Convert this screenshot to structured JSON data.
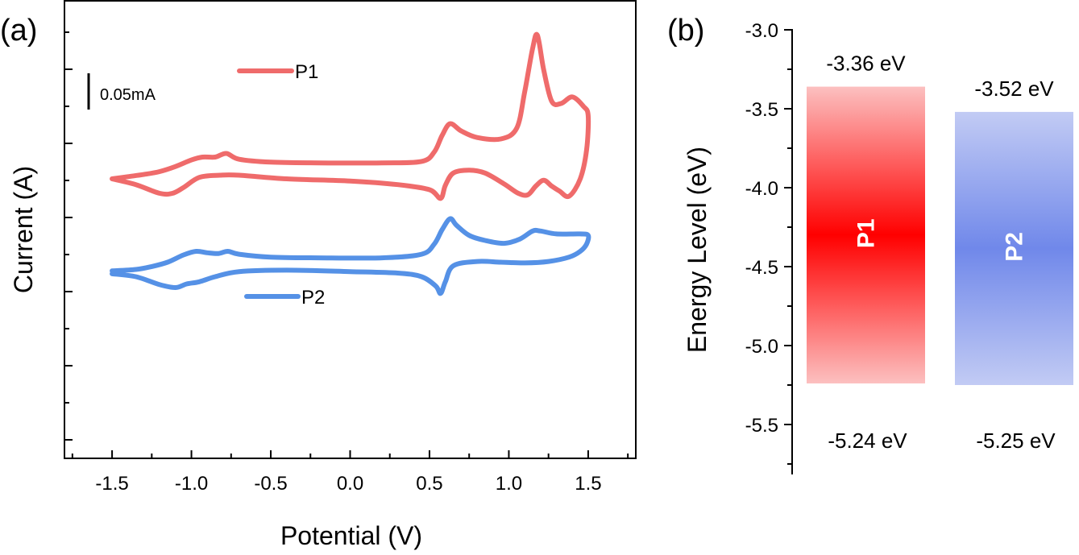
{
  "chart_data": [
    {
      "panel_label": "(a)",
      "type": "line",
      "title": "",
      "xlabel": "Potential (V)",
      "ylabel": "Current (A)",
      "xlim": [
        -1.8,
        1.8
      ],
      "x_ticks": [
        -1.5,
        -1.0,
        -0.5,
        0.0,
        0.5,
        1.0,
        1.5
      ],
      "x_tick_labels": [
        "-1.5",
        "-1.0",
        "-0.5",
        "0.0",
        "0.5",
        "1.0",
        "1.5"
      ],
      "y_tick_labels": [],
      "scale_bar": {
        "label": "0.05mA",
        "value_mA": 0.05
      },
      "legend": [
        "P1",
        "P2"
      ],
      "series": [
        {
          "name": "P1",
          "color": "#ef6b6b",
          "offset_mA": 0.0,
          "x": [
            -1.5,
            -1.4,
            -1.3,
            -1.2,
            -1.1,
            -1.0,
            -0.93,
            -0.85,
            -0.78,
            -0.7,
            -0.5,
            -0.2,
            0.2,
            0.45,
            0.53,
            0.58,
            0.63,
            0.7,
            0.8,
            0.95,
            1.05,
            1.1,
            1.15,
            1.18,
            1.22,
            1.27,
            1.33,
            1.4,
            1.47,
            1.5,
            1.49,
            1.45,
            1.38,
            1.32,
            1.27,
            1.22,
            1.17,
            1.12,
            1.06,
            0.97,
            0.85,
            0.75,
            0.65,
            0.6,
            0.57,
            0.5,
            0.3,
            0.0,
            -0.4,
            -0.7,
            -0.82,
            -0.95,
            -1.05,
            -1.12,
            -1.2,
            -1.35,
            -1.5
          ],
          "y": [
            0.0,
            0.003,
            0.006,
            0.01,
            0.017,
            0.026,
            0.03,
            0.03,
            0.035,
            0.027,
            0.023,
            0.022,
            0.022,
            0.024,
            0.037,
            0.06,
            0.076,
            0.066,
            0.057,
            0.055,
            0.07,
            0.12,
            0.18,
            0.198,
            0.15,
            0.107,
            0.104,
            0.113,
            0.1,
            0.087,
            0.04,
            0.0,
            -0.024,
            -0.017,
            -0.01,
            -0.002,
            -0.01,
            -0.022,
            -0.02,
            -0.007,
            0.008,
            0.012,
            0.008,
            -0.009,
            -0.027,
            -0.015,
            -0.008,
            -0.003,
            0.0,
            0.005,
            0.005,
            0.002,
            -0.012,
            -0.02,
            -0.02,
            -0.008,
            0.0
          ]
        },
        {
          "name": "P2",
          "color": "#5591e6",
          "offset_mA": -0.13,
          "x": [
            -1.5,
            -1.35,
            -1.25,
            -1.15,
            -1.05,
            -0.97,
            -0.9,
            -0.83,
            -0.77,
            -0.7,
            -0.5,
            -0.2,
            0.2,
            0.45,
            0.53,
            0.58,
            0.63,
            0.67,
            0.75,
            0.85,
            0.97,
            1.07,
            1.15,
            1.2,
            1.3,
            1.45,
            1.5,
            1.49,
            1.45,
            1.38,
            1.25,
            1.1,
            0.95,
            0.8,
            0.65,
            0.6,
            0.57,
            0.54,
            0.45,
            0.3,
            0.0,
            -0.4,
            -0.7,
            -0.85,
            -0.95,
            -1.03,
            -1.1,
            -1.2,
            -1.35,
            -1.5
          ],
          "y": [
            0.003,
            0.005,
            0.009,
            0.015,
            0.025,
            0.03,
            0.028,
            0.027,
            0.03,
            0.026,
            0.022,
            0.021,
            0.021,
            0.026,
            0.04,
            0.06,
            0.075,
            0.066,
            0.052,
            0.045,
            0.041,
            0.047,
            0.058,
            0.058,
            0.054,
            0.054,
            0.052,
            0.04,
            0.03,
            0.022,
            0.016,
            0.014,
            0.015,
            0.016,
            0.01,
            -0.012,
            -0.028,
            -0.018,
            -0.005,
            0.0,
            0.002,
            0.004,
            0.002,
            -0.005,
            -0.012,
            -0.015,
            -0.02,
            -0.016,
            -0.005,
            -0.001
          ]
        }
      ]
    },
    {
      "panel_label": "(b)",
      "type": "bar",
      "title": "",
      "xlabel": "",
      "ylabel": "Energy Level (eV)",
      "ylim": [
        -5.8,
        -3.0
      ],
      "y_ticks": [
        -3.0,
        -3.5,
        -4.0,
        -4.5,
        -5.0,
        -5.5
      ],
      "y_tick_labels": [
        "-3.0",
        "-3.5",
        "-4.0",
        "-4.5",
        "-5.0",
        "-5.5"
      ],
      "categories": [
        "P1",
        "P2"
      ],
      "series": [
        {
          "name": "P1",
          "lumo": -3.36,
          "homo": -5.24,
          "lumo_label": "-3.36 eV",
          "homo_label": "-5.24 eV",
          "color_center": "#ff0000",
          "color_edge": "#fcc0c0"
        },
        {
          "name": "P2",
          "lumo": -3.52,
          "homo": -5.25,
          "lumo_label": "-3.52 eV",
          "homo_label": "-5.25 eV",
          "color_center": "#7088ea",
          "color_edge": "#c2cbf4"
        }
      ]
    }
  ]
}
